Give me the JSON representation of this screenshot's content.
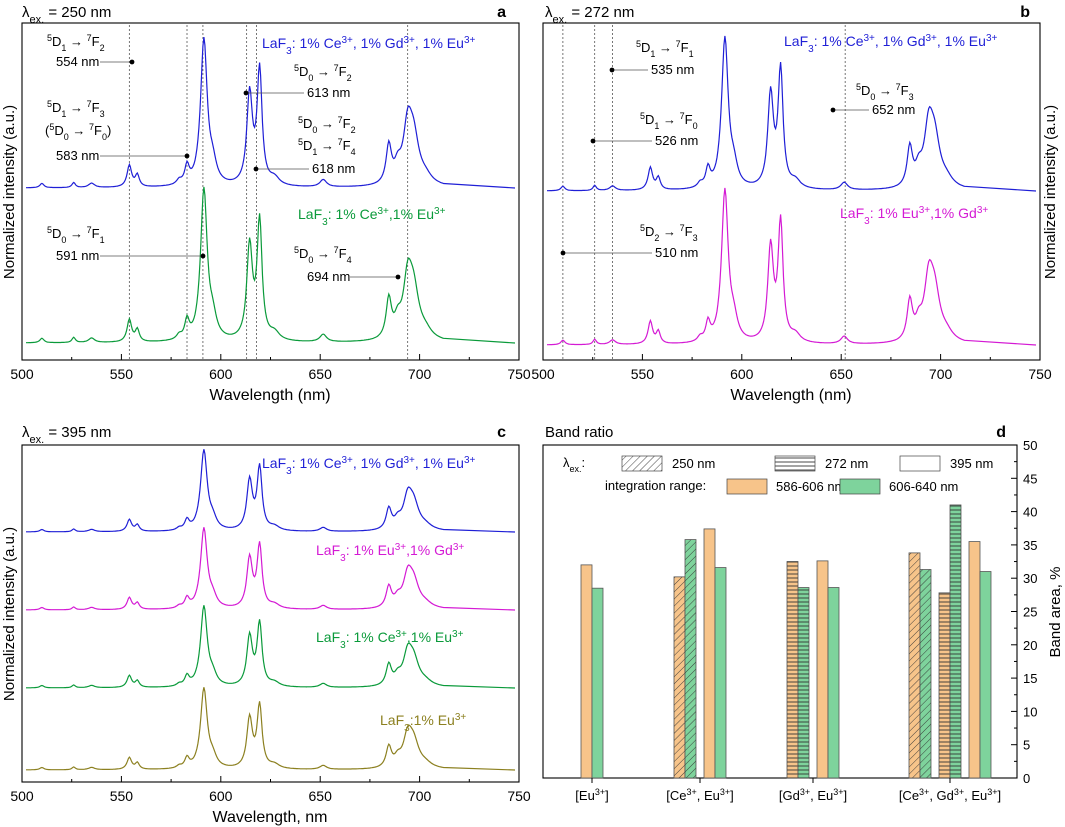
{
  "chart_data": [
    {
      "id": "a",
      "type": "line",
      "panel_letter": "a",
      "excitation_label": "λ",
      "excitation_sub": "ex.",
      "excitation_value": " = 250 nm",
      "xlabel": "Wavelength (nm)",
      "ylabel": "Normalized intensity (a.u.)",
      "xlim": [
        500,
        750
      ],
      "xticks": [
        "500",
        "550",
        "600",
        "650",
        "700",
        "750"
      ],
      "series": [
        {
          "name": "LaF3: 1% Ce3+, 1% Gd3+, 1% Eu3+",
          "color": "#1f1fd6",
          "legend": [
            "LaF",
            "3",
            ": 1% Ce",
            "3+",
            ", 1% Gd",
            "3+",
            ", 1% Eu",
            "3+"
          ],
          "scale": 0.62
        },
        {
          "name": "LaF3: 1% Ce3+,1% Eu3+",
          "color": "#0a9a3a",
          "legend": [
            "LaF",
            "3",
            ": 1% Ce",
            "3+",
            ",1% Eu",
            "3+"
          ],
          "scale": 0.61
        }
      ],
      "vlines": [
        554,
        583,
        591,
        613,
        618,
        694
      ],
      "annotations": [
        {
          "line1": "5D1 → 7F2",
          "wavelength": "554 nm"
        },
        {
          "line1": "5D1 → 7F3",
          "line2": "(5D0 → 7F0)",
          "wavelength": "583 nm"
        },
        {
          "line1": "5D0 → 7F2",
          "wavelength": "613 nm"
        },
        {
          "line1": "5D0 → 7F2",
          "line2": "5D1 → 7F4",
          "wavelength": "618 nm"
        },
        {
          "line1": "5D0 → 7F1",
          "wavelength": "591 nm"
        },
        {
          "line1": "5D0 → 7F4",
          "wavelength": "694 nm"
        }
      ]
    },
    {
      "id": "b",
      "type": "line",
      "panel_letter": "b",
      "excitation_label": "λ",
      "excitation_sub": "ex.",
      "excitation_value": " = 272 nm",
      "xlabel": "Wavelength (nm)",
      "ylabel": "Normalized intensity (a.u.)",
      "xlim": [
        500,
        750
      ],
      "xticks": [
        "500",
        "550",
        "600",
        "650",
        "700",
        "750"
      ],
      "series": [
        {
          "name": "LaF3: 1% Ce3+, 1% Gd3+, 1% Eu3+",
          "color": "#1f1fd6",
          "legend": [
            "LaF",
            "3",
            ": 1% Ce",
            "3+",
            ", 1% Gd",
            "3+",
            ", 1% Eu",
            "3+"
          ],
          "scale": 0.6
        },
        {
          "name": "LaF3: 1% Eu3+,1% Gd3+",
          "color": "#d41ad4",
          "legend": [
            "LaF",
            "3",
            ": 1% Eu",
            "3+",
            ",1% Gd",
            "3+"
          ],
          "scale": 0.58
        }
      ],
      "vlines": [
        510,
        526,
        535,
        652
      ],
      "annotations": [
        {
          "line1": "5D1 → 7F1",
          "wavelength": "535 nm"
        },
        {
          "line1": "5D0 → 7F3",
          "wavelength": "652 nm"
        },
        {
          "line1": "5D1 → 7F0",
          "wavelength": "526 nm"
        },
        {
          "line1": "5D2 → 7F3",
          "wavelength": "510 nm"
        }
      ]
    },
    {
      "id": "c",
      "type": "line",
      "panel_letter": "c",
      "excitation_label": "λ",
      "excitation_sub": "ex.",
      "excitation_value": " = 395 nm",
      "xlabel": "Wavelength, nm",
      "ylabel": "Normalized intensity (a.u.)",
      "xlim": [
        500,
        750
      ],
      "xticks": [
        "500",
        "550",
        "600",
        "650",
        "700",
        "750"
      ],
      "series": [
        {
          "name": "LaF3: 1% Ce3+, 1% Gd3+, 1% Eu3+",
          "color": "#1f1fd6",
          "legend": [
            "LaF",
            "3",
            ": 1% Ce",
            "3+",
            ", 1% Gd",
            "3+",
            ", 1% Eu",
            "3+"
          ],
          "scale": 0.3
        },
        {
          "name": "LaF3: 1% Eu3+,1% Gd3+",
          "color": "#d41ad4",
          "legend": [
            "LaF",
            "3",
            ": 1% Eu",
            "3+",
            ",1% Gd",
            "3+"
          ],
          "scale": 0.3
        },
        {
          "name": "LaF3: 1% Ce3+,1% Eu3+",
          "color": "#0a9a3a",
          "legend": [
            "LaF",
            "3",
            ": 1% Ce",
            "3+",
            ",1% Eu",
            "3+"
          ],
          "scale": 0.3
        },
        {
          "name": "LaF3:1% Eu3+",
          "color": "#8c8020",
          "legend": [
            "LaF",
            "3",
            ":1% Eu",
            "3+"
          ],
          "scale": 0.3
        }
      ]
    },
    {
      "id": "d",
      "type": "bar",
      "panel_letter": "d",
      "title": "Band ratio",
      "ylabel": "Band area, %",
      "ylim": [
        0,
        50
      ],
      "yticks": [
        0,
        5,
        10,
        15,
        20,
        25,
        30,
        35,
        40,
        45,
        50
      ],
      "categories": [
        "[Eu3+]",
        "[Ce3+, Eu3+]",
        "[Gd3+, Eu3+]",
        "[Ce3+, Gd3+, Eu3+]"
      ],
      "category_labels": [
        [
          "[Eu",
          "3+",
          "]"
        ],
        [
          "[Ce",
          "3+",
          ", Eu",
          "3+",
          "]"
        ],
        [
          "[Gd",
          "3+",
          ", Eu",
          "3+",
          "]"
        ],
        [
          "[Ce",
          "3+",
          ", Gd",
          "3+",
          ", Eu",
          "3+",
          "]"
        ]
      ],
      "excitation_legend_label": "λ",
      "excitation_legend_sub": "ex.",
      "excitation_legend_colon": ":",
      "excitations": [
        "250 nm",
        "272 nm",
        "395 nm"
      ],
      "integration_label": "integration range:",
      "ranges": [
        "586-606 nm",
        "606-640 nm"
      ],
      "range_colors": [
        "#f7c48a",
        "#7ed39c"
      ],
      "bars": [
        {
          "category": 0,
          "excitation": "395 nm",
          "range": "586-606 nm",
          "value": 32.0
        },
        {
          "category": 0,
          "excitation": "395 nm",
          "range": "606-640 nm",
          "value": 28.5
        },
        {
          "category": 1,
          "excitation": "250 nm",
          "range": "586-606 nm",
          "value": 30.2
        },
        {
          "category": 1,
          "excitation": "250 nm",
          "range": "606-640 nm",
          "value": 35.8
        },
        {
          "category": 1,
          "excitation": "395 nm",
          "range": "586-606 nm",
          "value": 37.4
        },
        {
          "category": 1,
          "excitation": "395 nm",
          "range": "606-640 nm",
          "value": 31.6
        },
        {
          "category": 2,
          "excitation": "272 nm",
          "range": "586-606 nm",
          "value": 32.5
        },
        {
          "category": 2,
          "excitation": "272 nm",
          "range": "606-640 nm",
          "value": 28.6
        },
        {
          "category": 2,
          "excitation": "395 nm",
          "range": "586-606 nm",
          "value": 32.6
        },
        {
          "category": 2,
          "excitation": "395 nm",
          "range": "606-640 nm",
          "value": 28.6
        },
        {
          "category": 3,
          "excitation": "250 nm",
          "range": "586-606 nm",
          "value": 33.8
        },
        {
          "category": 3,
          "excitation": "250 nm",
          "range": "606-640 nm",
          "value": 31.3
        },
        {
          "category": 3,
          "excitation": "272 nm",
          "range": "586-606 nm",
          "value": 27.8
        },
        {
          "category": 3,
          "excitation": "272 nm",
          "range": "606-640 nm",
          "value": 41.0
        },
        {
          "category": 3,
          "excitation": "395 nm",
          "range": "586-606 nm",
          "value": 35.5
        },
        {
          "category": 3,
          "excitation": "395 nm",
          "range": "606-640 nm",
          "value": 31.0
        }
      ]
    }
  ]
}
